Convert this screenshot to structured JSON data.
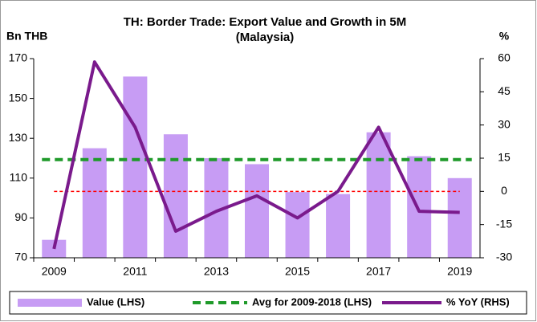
{
  "chart_data": {
    "type": "bar",
    "title": "TH: Border Trade: Export Value and Growth in 5M",
    "subtitle": "(Malaysia)",
    "y_label": "Bn THB",
    "y2_label": "%",
    "categories": [
      "2009",
      null,
      "2011",
      null,
      "2013",
      null,
      "2015",
      null,
      "2017",
      null,
      "2019"
    ],
    "series": [
      {
        "name": "Value (LHS)",
        "type": "bar",
        "color": "#c79cf4",
        "values": [
          79,
          125,
          161,
          132,
          120,
          117,
          103,
          102,
          133,
          121,
          110
        ]
      },
      {
        "name": "% YoY (RHS)",
        "type": "line",
        "axis": "y2",
        "color": "#7a1a8c",
        "values": [
          -26,
          58.5,
          29,
          -18,
          -9,
          -2,
          -12,
          0,
          29,
          -9,
          -9.5
        ]
      }
    ],
    "reference_lines": [
      {
        "name": "Avg for 2009-2018 (LHS)",
        "value": 119.3,
        "color": "#1f9a2a"
      },
      {
        "axis": "y2",
        "value": 0,
        "color": "#ff0000"
      }
    ],
    "ylim": [
      70,
      170
    ],
    "yticks": [
      70,
      90,
      110,
      130,
      150,
      170
    ],
    "y2lim": [
      -30,
      60
    ],
    "y2ticks": [
      -30,
      -15,
      0,
      15,
      30,
      45,
      60
    ],
    "legend": "bottom"
  }
}
